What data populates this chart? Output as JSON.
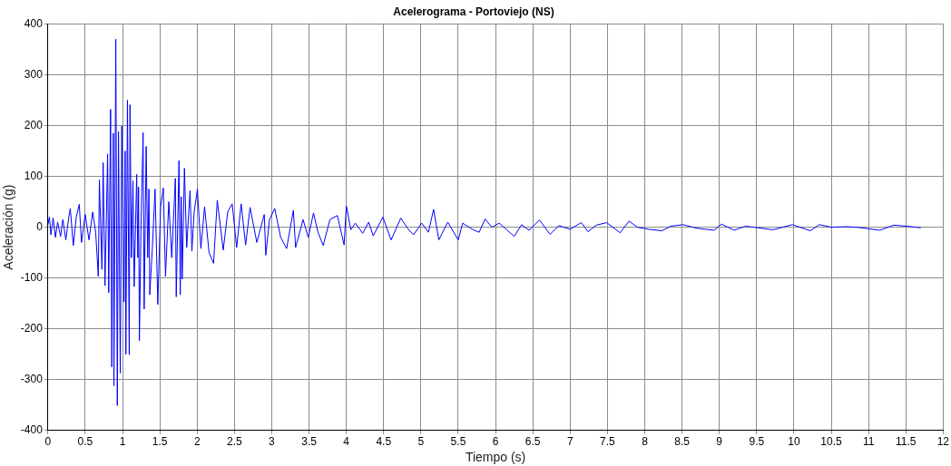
{
  "chart_data": {
    "type": "line",
    "title": "Acelerograma - Portoviejo (NS)",
    "xlabel": "Tiempo (s)",
    "ylabel": "Aceleración (g)",
    "x": [
      0,
      0.02,
      0.04,
      0.07,
      0.1,
      0.13,
      0.17,
      0.2,
      0.24,
      0.28,
      0.3,
      0.34,
      0.38,
      0.42,
      0.45,
      0.5,
      0.55,
      0.6,
      0.64,
      0.675,
      0.69,
      0.724,
      0.74,
      0.765,
      0.8,
      0.815,
      0.84,
      0.856,
      0.877,
      0.885,
      0.91,
      0.93,
      0.946,
      0.97,
      0.99,
      1.02,
      1.035,
      1.045,
      1.066,
      1.09,
      1.1,
      1.12,
      1.14,
      1.156,
      1.19,
      1.205,
      1.215,
      1.226,
      1.25,
      1.276,
      1.29,
      1.317,
      1.338,
      1.354,
      1.365,
      1.4,
      1.436,
      1.473,
      1.51,
      1.547,
      1.576,
      1.62,
      1.66,
      1.708,
      1.72,
      1.757,
      1.774,
      1.787,
      1.8,
      1.83,
      1.86,
      1.905,
      1.93,
      1.96,
      2.004,
      2.05,
      2.1,
      2.16,
      2.22,
      2.27,
      2.35,
      2.41,
      2.47,
      2.53,
      2.59,
      2.65,
      2.71,
      2.8,
      2.9,
      2.92,
      2.97,
      3.04,
      3.12,
      3.2,
      3.29,
      3.32,
      3.42,
      3.49,
      3.56,
      3.62,
      3.69,
      3.78,
      3.88,
      3.97,
      4,
      4.06,
      4.12,
      4.22,
      4.3,
      4.36,
      4.49,
      4.6,
      4.73,
      4.82,
      4.9,
      5.01,
      5.1,
      5.17,
      5.24,
      5.36,
      5.5,
      5.56,
      5.59,
      5.7,
      5.78,
      5.86,
      5.95,
      6.05,
      6.15,
      6.25,
      6.35,
      6.45,
      6.59,
      6.73,
      6.85,
      7,
      7.15,
      7.24,
      7.35,
      7.49,
      7.67,
      7.79,
      7.9,
      8.05,
      8.23,
      8.35,
      8.51,
      8.7,
      8.93,
      9.03,
      9.2,
      9.35,
      9.51,
      9.72,
      9.98,
      10.22,
      10.34,
      10.5,
      10.72,
      10.9,
      11.15,
      11.34,
      11.51,
      11.7
    ],
    "series": [
      {
        "color": "#0000ff",
        "values": [
          5,
          20,
          -15,
          18,
          -20,
          10,
          -18,
          15,
          -25,
          20,
          37,
          -36,
          20,
          45,
          -30,
          25,
          -25,
          30,
          -10,
          -97,
          93,
          -83,
          127,
          -115,
          144,
          -129,
          232,
          -275,
          185,
          -312,
          370,
          -351,
          188,
          -287,
          199,
          -147,
          150,
          -250,
          250,
          -251,
          241,
          -60,
          91,
          -117,
          104,
          -60,
          79,
          -223,
          20,
          186,
          -161,
          159,
          -60,
          75,
          -133,
          -40,
          75,
          -152,
          40,
          77,
          -97,
          50,
          -60,
          96,
          -137,
          131,
          -133,
          60,
          -102,
          116,
          -40,
          72,
          -47,
          30,
          75,
          -42,
          40,
          -50,
          -71,
          53,
          -45,
          30,
          46,
          -40,
          46,
          -35,
          39,
          -30,
          25,
          -55,
          15,
          37,
          -20,
          -42,
          33,
          -40,
          15,
          -20,
          28,
          -10,
          -36,
          15,
          23,
          -35,
          42,
          -5,
          8,
          -12,
          10,
          -17,
          20,
          -25,
          18,
          -2,
          -15,
          8,
          -10,
          35,
          -25,
          10,
          -25,
          8,
          5,
          -5,
          -10,
          16,
          0,
          8,
          -5,
          -18,
          5,
          -6,
          14,
          -14,
          3,
          -4,
          9,
          -9,
          4,
          9,
          -11,
          12,
          0,
          -4,
          -7,
          2,
          5,
          -2,
          -6,
          6,
          -6,
          2,
          -1,
          -5,
          5,
          -7,
          5,
          0,
          1,
          -1,
          -6,
          4,
          2,
          -1
        ]
      }
    ],
    "xlim": [
      0,
      12
    ],
    "xticks": [
      0,
      {
        "value": 0.5,
        "label": "0.5"
      },
      1,
      {
        "value": 1.5,
        "label": "1.5"
      },
      2,
      {
        "value": 2.5,
        "label": "2.5"
      },
      3,
      {
        "value": 3.5,
        "label": "3.5"
      },
      4,
      {
        "value": 4.5,
        "label": "4.5"
      },
      5,
      {
        "value": 5.5,
        "label": "5.5"
      },
      6,
      {
        "value": 6.5,
        "label": "6.5"
      },
      7,
      {
        "value": 7.5,
        "label": "7.5"
      },
      8,
      {
        "value": 8.5,
        "label": "8.5"
      },
      9,
      {
        "value": 9.5,
        "label": "9.5"
      },
      10,
      {
        "value": 10.5,
        "label": "10.5"
      },
      11,
      {
        "value": 11.5,
        "label": "11.5"
      },
      12
    ],
    "ylim": [
      -400,
      400
    ],
    "yticks": [
      -400,
      -300,
      -200,
      -100,
      0,
      100,
      200,
      300,
      400
    ],
    "grid": true,
    "legend": false,
    "marker": "none",
    "line_style": "solid"
  }
}
